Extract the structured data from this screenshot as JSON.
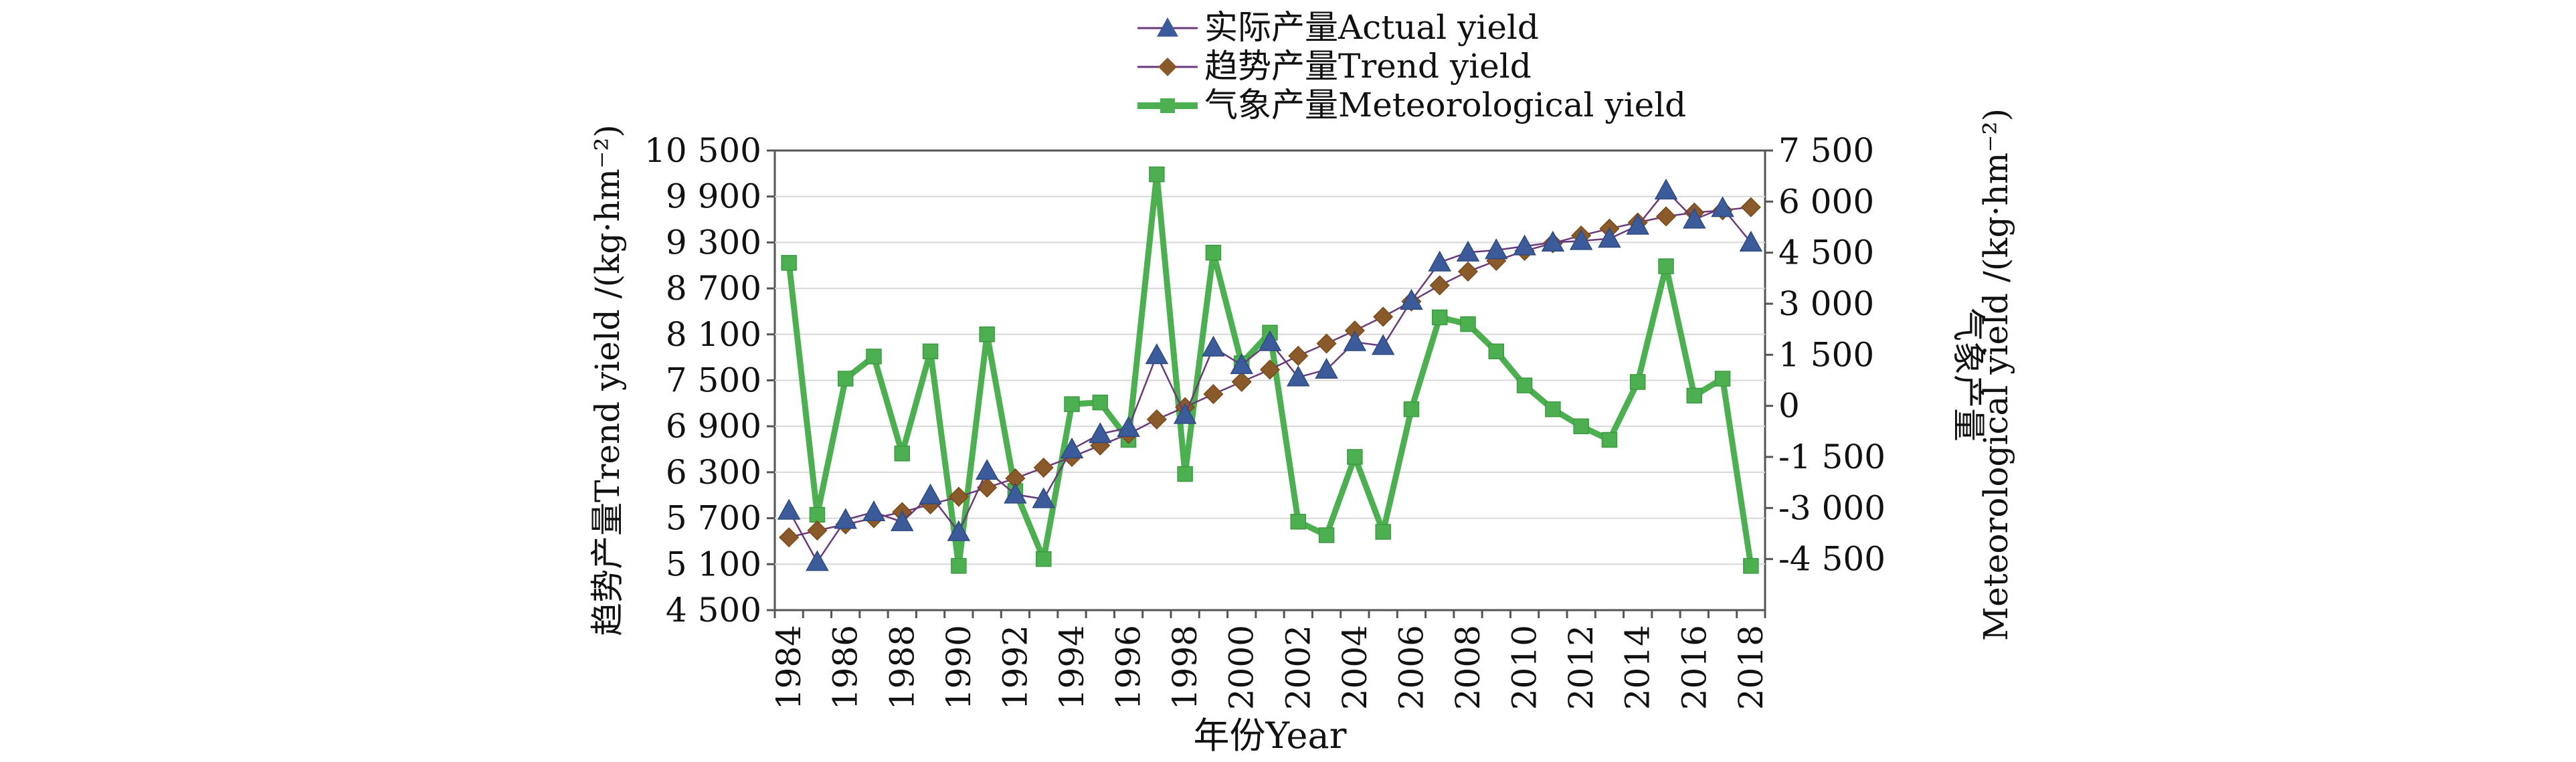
{
  "chart_data": {
    "type": "line",
    "title": "",
    "xlabel": "年份Year",
    "ylabel_left": "趋势产量Trend yield /(kg·hm⁻²)",
    "ylabel_right_cn": "气象产量",
    "ylabel_right_en": "Meteorological yield /(kg·hm⁻²)",
    "legend_position": "top",
    "x": [
      1984,
      1985,
      1986,
      1987,
      1988,
      1989,
      1990,
      1991,
      1992,
      1993,
      1994,
      1995,
      1996,
      1997,
      1998,
      1999,
      2000,
      2001,
      2002,
      2003,
      2004,
      2005,
      2006,
      2007,
      2008,
      2009,
      2010,
      2011,
      2012,
      2013,
      2014,
      2015,
      2016,
      2017,
      2018
    ],
    "x_tick_labels": [
      "1984",
      "1986",
      "1988",
      "1990",
      "1992",
      "1994",
      "1996",
      "1998",
      "2000",
      "2002",
      "2004",
      "2006",
      "2008",
      "2010",
      "2012",
      "2014",
      "2016",
      "2018"
    ],
    "y_left": {
      "min": 4500,
      "max": 10500,
      "ticks": [
        4500,
        5100,
        5700,
        6300,
        6900,
        7500,
        8100,
        8700,
        9300,
        9900,
        10500
      ],
      "tick_labels": [
        "4 500",
        "5 100",
        "5 700",
        "6 300",
        "6 900",
        "7 500",
        "8 100",
        "8 700",
        "9 300",
        "9 900",
        "10 500"
      ]
    },
    "y_right": {
      "min": -6000,
      "max": 7500,
      "ticks": [
        -4500,
        -3000,
        -1500,
        0,
        1500,
        3000,
        4500,
        6000,
        7500
      ],
      "tick_labels": [
        "-4 500",
        "-3 000",
        "-1 500",
        "0",
        "1 500",
        "3 000",
        "4 500",
        "6 000",
        "7 500"
      ]
    },
    "series": [
      {
        "name": "实际产量Actual yield",
        "axis": "left",
        "marker": "triangle",
        "color": "#3b5b9a",
        "line_color": "#6b3a7a",
        "values": [
          5800,
          5130,
          5680,
          5780,
          5650,
          6000,
          5520,
          6320,
          6010,
          5950,
          6600,
          6800,
          6880,
          7830,
          7050,
          7930,
          7700,
          8000,
          7540,
          7640,
          8000,
          7950,
          8540,
          9040,
          9170,
          9200,
          9250,
          9300,
          9320,
          9350,
          9520,
          9980,
          9600,
          9750,
          9300
        ]
      },
      {
        "name": "趋势产量Trend yield",
        "axis": "left",
        "marker": "diamond",
        "color": "#8b5a2b",
        "line_color": "#6b3a7a",
        "values": [
          5450,
          5540,
          5620,
          5700,
          5780,
          5880,
          5980,
          6100,
          6220,
          6360,
          6500,
          6650,
          6800,
          6990,
          7150,
          7320,
          7480,
          7640,
          7820,
          7980,
          8150,
          8330,
          8530,
          8740,
          8920,
          9060,
          9190,
          9290,
          9390,
          9480,
          9560,
          9640,
          9690,
          9720,
          9760
        ]
      },
      {
        "name": "气象产量Meteorological yield",
        "axis": "right",
        "marker": "square",
        "color": "#4caf50",
        "line_color": "#4caf50",
        "values": [
          4200,
          -3200,
          800,
          1450,
          -1400,
          1600,
          -4700,
          2100,
          -2500,
          -4500,
          50,
          100,
          -1000,
          6800,
          -2000,
          4500,
          1250,
          2150,
          -3400,
          -3800,
          -1500,
          -3700,
          -100,
          2600,
          2400,
          1600,
          600,
          -100,
          -600,
          -1000,
          700,
          4100,
          300,
          800,
          -4700
        ]
      }
    ]
  }
}
